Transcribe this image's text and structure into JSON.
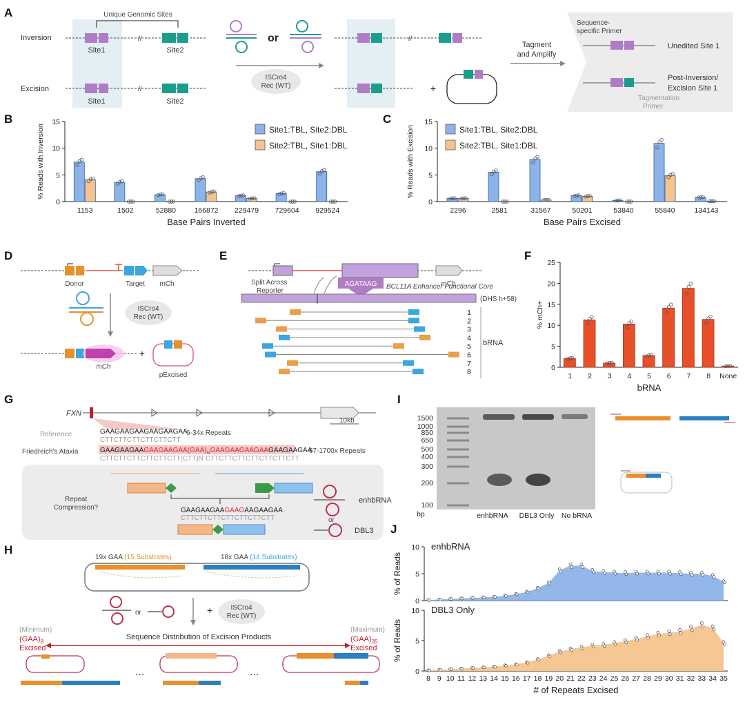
{
  "panels": {
    "A": {
      "label": "A",
      "row_inversion": "Inversion",
      "row_excision": "Excision",
      "unique_sites": "Unique Genomic Sites",
      "site1": "Site1",
      "site2": "Site2",
      "or": "or",
      "recombinase": [
        "ISCro4",
        "Rec (WT)"
      ],
      "tagment": [
        "Tagment",
        "and Amplify"
      ],
      "seq_primer": [
        "Sequence-",
        "specific Primer"
      ],
      "unedited": "Unedited Site 1",
      "post_inv": [
        "Post-Inversion/",
        "Excision Site 1"
      ],
      "tag_primer": [
        "Tagmentation",
        "Primer"
      ],
      "plus": "+"
    },
    "D": {
      "label": "D",
      "donor": "Donor",
      "target": "Target",
      "mch": "mCh",
      "recombinase": [
        "ISCro4",
        "Rec (WT)"
      ],
      "mch2": "mCh",
      "pexcised": "pExcised",
      "plus": "+"
    },
    "E": {
      "label": "E",
      "split": [
        "Split Across",
        "Reporter"
      ],
      "motif": "AGATAAG",
      "core": "BCL11A Enhancer Functional Core",
      "dhs": "(DHS h+58)",
      "mch": "mCh",
      "brna": "bRNA",
      "rows": [
        "1",
        "2",
        "3",
        "4",
        "5",
        "6",
        "7",
        "8"
      ]
    },
    "G": {
      "label": "G",
      "gene": "FXN",
      "scale": "10kb",
      "reference": "Reference",
      "ref_seq": "GAAGAAGAAGAAGAAGAA",
      "ref_comp": "CTTCTTCTTCTTCTTCTT",
      "ref_repeats": "6-34x Repeats",
      "fa": "Friedreich's Ataxia",
      "fa_seq_a": "GAAGAAGAA",
      "fa_seq_b": "GAAGAAGAA(GAA)",
      "fa_seq_n": "N",
      "fa_seq_c": "GAAGAAGAAGAA",
      "fa_seq_d": "GAAGAAGAA",
      "fa_comp": "CTTCTTCTTCTTCTTCTT(CTT)N CTTCTTCTTCTTCTTCTTCTT",
      "fa_repeats": "67-1700x Repeats",
      "compression": [
        "Repeat",
        "Compression?"
      ],
      "comp_seq_a": "GAAGAAGAA",
      "comp_seq_b": "GAAG",
      "comp_seq_c": "AAGAAGAA",
      "comp_comp": "CTTCTTCTTCTTCTTCTTCTT",
      "enhbrna": "enhbRNA",
      "or": "or",
      "dbl3": "DBL3"
    },
    "H": {
      "label": "H",
      "left_gaa": "19x GAA",
      "left_sub": "(15 Substrates)",
      "right_gaa": "18x GAA",
      "right_sub": "(14 Substrates)",
      "or": "or",
      "recombinase": [
        "ISCro4",
        "Rec (WT)"
      ],
      "plus": "+",
      "minimum": "(Minimum)",
      "maximum": "(Maximum)",
      "gaa8": "(GAA)",
      "sub8": "8",
      "gaa35": "(GAA)",
      "sub35": "35",
      "excised": "Excised",
      "distribution": "Sequence Distribution of Excision Products",
      "dots": "..."
    },
    "I": {
      "label": "I",
      "ladder": [
        "1500",
        "1000",
        "850",
        "650",
        "500",
        "400",
        "300",
        "200",
        "100"
      ],
      "bp": "bp",
      "lanes": [
        "enhbRNA",
        "DBL3 Only",
        "No bRNA"
      ]
    }
  },
  "chart_data": [
    {
      "panel": "B",
      "type": "bar",
      "ylabel": "% Reads with Inversion",
      "xlabel": "Base Pairs Inverted",
      "ylim": [
        0,
        15
      ],
      "yticks": [
        0,
        5,
        10,
        15
      ],
      "categories": [
        "1153",
        "1502",
        "52880",
        "166872",
        "229479",
        "729604",
        "929524"
      ],
      "series": [
        {
          "name": "Site1:TBL, Site2:DBL",
          "color": "#8db3e8",
          "values": [
            7.4,
            3.6,
            1.3,
            4.3,
            1.1,
            1.5,
            5.6
          ]
        },
        {
          "name": "Site2:TBL, Site1:DBL",
          "color": "#f5c48c",
          "values": [
            4.1,
            0.0,
            0.0,
            1.8,
            0.6,
            0.0,
            0.0
          ]
        }
      ]
    },
    {
      "panel": "C",
      "type": "bar",
      "ylabel": "% Reads with Excision",
      "xlabel": "Base Pairs Excised",
      "ylim": [
        0,
        15
      ],
      "yticks": [
        0,
        5,
        10,
        15
      ],
      "categories": [
        "2296",
        "2581",
        "31567",
        "50201",
        "53840",
        "55840",
        "134143"
      ],
      "series": [
        {
          "name": "Site1:TBL, Site2:DBL",
          "color": "#8db3e8",
          "values": [
            0.6,
            5.5,
            7.9,
            1.1,
            0.2,
            10.9,
            0.8
          ]
        },
        {
          "name": "Site2:TBL, Site1:DBL",
          "color": "#f5c48c",
          "values": [
            0.6,
            0.0,
            0.3,
            1.0,
            0.0,
            4.9,
            0.1
          ]
        }
      ]
    },
    {
      "panel": "F",
      "type": "bar",
      "ylabel": "% mCh+",
      "xlabel": "bRNA",
      "ylim": [
        0,
        25
      ],
      "yticks": [
        0,
        5,
        10,
        15,
        20,
        25
      ],
      "categories": [
        "1",
        "2",
        "3",
        "4",
        "5",
        "6",
        "7",
        "8",
        "None"
      ],
      "series": [
        {
          "color": "#e8502a",
          "values": [
            2.1,
            11.3,
            1.0,
            10.3,
            2.8,
            14.1,
            18.8,
            11.4,
            0.3
          ]
        }
      ]
    },
    {
      "panel": "J",
      "type": "area",
      "ylabel": "% of Reads",
      "xlabel": "# of Repeats Excised",
      "ylim": [
        0,
        10
      ],
      "yticks": [
        0,
        5,
        10
      ],
      "x": [
        8,
        9,
        10,
        11,
        12,
        13,
        14,
        15,
        16,
        17,
        18,
        19,
        20,
        21,
        22,
        23,
        24,
        25,
        26,
        27,
        28,
        29,
        30,
        31,
        32,
        33,
        34,
        35
      ],
      "series": [
        {
          "name": "enhbRNA",
          "color": "#8db3e8",
          "values": [
            0.1,
            0.2,
            0.3,
            0.4,
            0.5,
            0.6,
            0.7,
            0.9,
            1.2,
            1.6,
            2.3,
            3.3,
            5.6,
            6.5,
            6.5,
            5.5,
            5.3,
            5.2,
            5.1,
            5.2,
            5.2,
            5.2,
            5.2,
            5.1,
            5.0,
            5.0,
            4.6,
            3.5
          ]
        },
        {
          "name": "DBL3 Only",
          "color": "#f5c48c",
          "values": [
            0.1,
            0.2,
            0.3,
            0.4,
            0.5,
            0.6,
            0.7,
            0.9,
            1.1,
            1.4,
            1.9,
            2.5,
            3.2,
            3.6,
            3.9,
            4.2,
            4.3,
            4.6,
            4.9,
            5.3,
            5.7,
            6.1,
            6.3,
            6.5,
            7.0,
            7.6,
            7.1,
            4.6
          ]
        }
      ]
    }
  ]
}
